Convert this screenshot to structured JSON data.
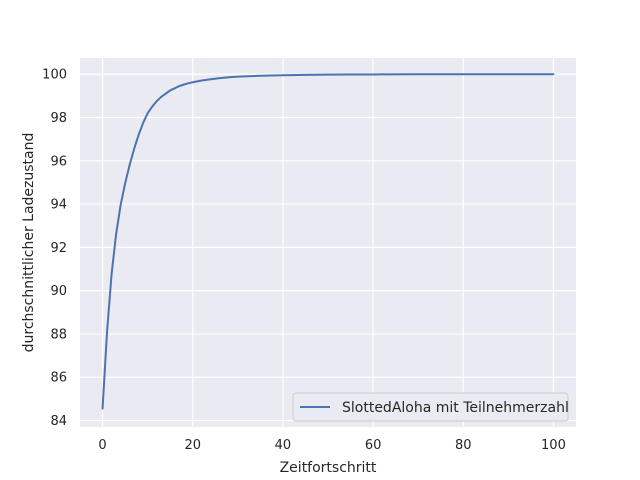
{
  "chart_data": {
    "type": "line",
    "title": "",
    "xlabel": "Zeitfortschritt",
    "ylabel": "durchschnittlicher Ladezustand",
    "xlim": [
      -5,
      105
    ],
    "ylim": [
      83.7,
      100.75
    ],
    "x_ticks": [
      0,
      20,
      40,
      60,
      80,
      100
    ],
    "y_ticks": [
      84,
      86,
      88,
      90,
      92,
      94,
      96,
      98,
      100
    ],
    "grid": true,
    "legend_position": "lower right",
    "series": [
      {
        "name": "SlottedAloha mit Teilnehmerzahl",
        "color": "#4c72b0",
        "x": [
          0,
          1,
          2,
          3,
          4,
          5,
          6,
          7,
          8,
          9,
          10,
          11,
          12,
          13,
          14,
          15,
          16,
          17,
          18,
          19,
          20,
          22,
          24,
          26,
          28,
          30,
          35,
          40,
          45,
          50,
          55,
          60,
          70,
          80,
          90,
          100
        ],
        "y": [
          84.55,
          88.1,
          90.75,
          92.6,
          93.95,
          94.95,
          95.8,
          96.55,
          97.2,
          97.75,
          98.2,
          98.5,
          98.75,
          98.95,
          99.1,
          99.25,
          99.35,
          99.45,
          99.52,
          99.58,
          99.63,
          99.71,
          99.77,
          99.82,
          99.86,
          99.89,
          99.93,
          99.95,
          99.97,
          99.98,
          99.99,
          99.99,
          100.0,
          100.0,
          100.0,
          100.0
        ]
      }
    ]
  }
}
